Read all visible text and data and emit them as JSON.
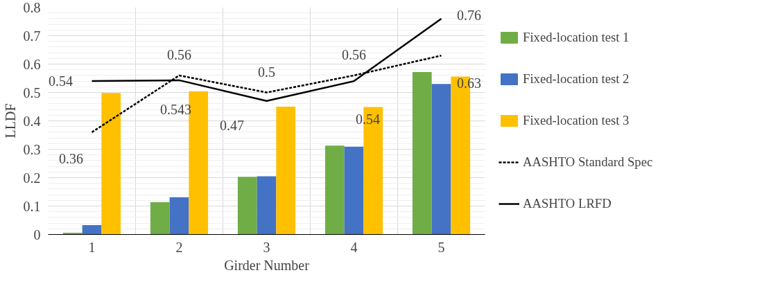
{
  "chart_data": {
    "type": "bar",
    "xlabel": "Girder Number",
    "ylabel": "LLDF",
    "categories": [
      "1",
      "2",
      "3",
      "4",
      "5"
    ],
    "series": [
      {
        "name": "Fixed-location test 1",
        "color": "#70ad47",
        "values": [
          0.006,
          0.114,
          0.203,
          0.313,
          0.572
        ]
      },
      {
        "name": "Fixed-location test 2",
        "color": "#4472c4",
        "values": [
          0.033,
          0.131,
          0.205,
          0.309,
          0.53
        ]
      },
      {
        "name": "Fixed-location test 3",
        "color": "#ffc000",
        "values": [
          0.498,
          0.504,
          0.45,
          0.449,
          0.556
        ]
      },
      {
        "name": "AASHTO Standard Spec",
        "type": "line",
        "line_style": "dashed",
        "color": "#000000",
        "values": [
          0.36,
          0.56,
          0.5,
          0.56,
          0.63
        ],
        "value_labels": [
          "0.36",
          "0.56",
          "0.5",
          "0.56",
          "0.63"
        ]
      },
      {
        "name": "AASHTO LRFD",
        "type": "line",
        "line_style": "solid",
        "color": "#000000",
        "values": [
          0.54,
          0.543,
          0.47,
          0.54,
          0.76
        ],
        "value_labels": [
          "0.54",
          "0.543",
          "0.47",
          "0.54",
          "0.76"
        ]
      }
    ],
    "ylim": [
      0,
      0.8
    ],
    "yticks": [
      0,
      0.1,
      0.2,
      0.3,
      0.4,
      0.5,
      0.6,
      0.7,
      0.8
    ],
    "grid": true,
    "legend": "right"
  }
}
